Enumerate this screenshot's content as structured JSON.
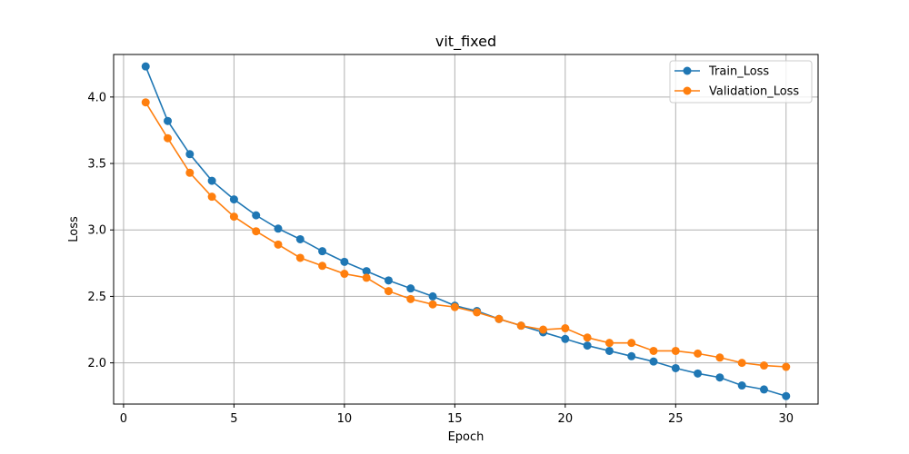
{
  "chart_data": {
    "type": "line",
    "title": "vit_fixed",
    "xlabel": "Epoch",
    "ylabel": "Loss",
    "xlim": [
      -0.45,
      31.45
    ],
    "ylim": [
      1.69,
      4.32
    ],
    "xticks": [
      0,
      5,
      10,
      15,
      20,
      25,
      30
    ],
    "xtick_labels": [
      "0",
      "5",
      "10",
      "15",
      "20",
      "25",
      "30"
    ],
    "yticks": [
      2.0,
      2.5,
      3.0,
      3.5,
      4.0
    ],
    "ytick_labels": [
      "2.0",
      "2.5",
      "3.0",
      "3.5",
      "4.0"
    ],
    "grid": true,
    "legend_position": "top-right",
    "x": [
      1,
      2,
      3,
      4,
      5,
      6,
      7,
      8,
      9,
      10,
      11,
      12,
      13,
      14,
      15,
      16,
      17,
      18,
      19,
      20,
      21,
      22,
      23,
      24,
      25,
      26,
      27,
      28,
      29,
      30
    ],
    "series": [
      {
        "name": "Train_Loss",
        "color": "#1f77b4",
        "values": [
          4.23,
          3.82,
          3.57,
          3.37,
          3.23,
          3.11,
          3.01,
          2.93,
          2.84,
          2.76,
          2.69,
          2.62,
          2.56,
          2.5,
          2.43,
          2.39,
          2.33,
          2.28,
          2.23,
          2.18,
          2.13,
          2.09,
          2.05,
          2.01,
          1.96,
          1.92,
          1.89,
          1.83,
          1.8,
          1.75
        ]
      },
      {
        "name": "Validation_Loss",
        "color": "#ff7f0e",
        "values": [
          3.96,
          3.69,
          3.43,
          3.25,
          3.1,
          2.99,
          2.89,
          2.79,
          2.73,
          2.67,
          2.64,
          2.54,
          2.48,
          2.44,
          2.42,
          2.38,
          2.33,
          2.28,
          2.25,
          2.26,
          2.19,
          2.15,
          2.15,
          2.09,
          2.09,
          2.07,
          2.04,
          2.0,
          1.98,
          1.97
        ]
      }
    ]
  }
}
